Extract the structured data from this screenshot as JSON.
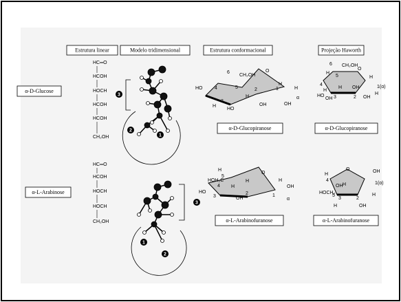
{
  "headers": [
    "Estrutura linear",
    "Modelo tridimensional",
    "Estrutura conformacional",
    "Projeção Haworth"
  ],
  "rows": [
    {
      "label": "α-D-Glucose",
      "linear": [
        "HC═O",
        "HCOH",
        "HOCH",
        "HCOH",
        "HCOH",
        "CH₂OH"
      ],
      "model_numbers": [
        "3",
        "2",
        "1"
      ],
      "conformational": {
        "caption": "α-D-Glucopiranose",
        "labels": [
          "HO",
          "4",
          "6",
          "CH₂OH",
          "5",
          "O",
          "H",
          "3",
          "HO",
          "H",
          "2",
          "OH",
          "1",
          "H",
          "H",
          "OH",
          "α"
        ]
      },
      "haworth": {
        "caption": "α-D-Glucopiranose",
        "labels": [
          "6",
          "CH₂OH",
          "5",
          "H",
          "O",
          "H",
          "1(α)",
          "4",
          "H",
          "OH",
          "HO",
          "3",
          "H",
          "2",
          "OH",
          "OH",
          "H"
        ]
      }
    },
    {
      "label": "α-L-Arabinose",
      "linear": [
        "HC═O",
        "HCOH",
        "HOCH",
        "HOCH",
        "CH₂OH"
      ],
      "model_numbers": [
        "3",
        "1",
        "2"
      ],
      "conformational": {
        "caption": "α-L-Arabinofuranose",
        "labels": [
          "H",
          "5",
          "HOH₂C",
          "4",
          "O",
          "H",
          "HO",
          "3",
          "H",
          "2",
          "OH",
          "1",
          "OH",
          "H",
          "α"
        ]
      },
      "haworth": {
        "caption": "α-L-Arabinofuranose",
        "labels": [
          "O",
          "OH",
          "4",
          "H",
          "HOCH₂",
          "5",
          "H",
          "OH",
          "3",
          "2",
          "1(α)",
          "H",
          "H",
          "OH"
        ]
      }
    }
  ]
}
